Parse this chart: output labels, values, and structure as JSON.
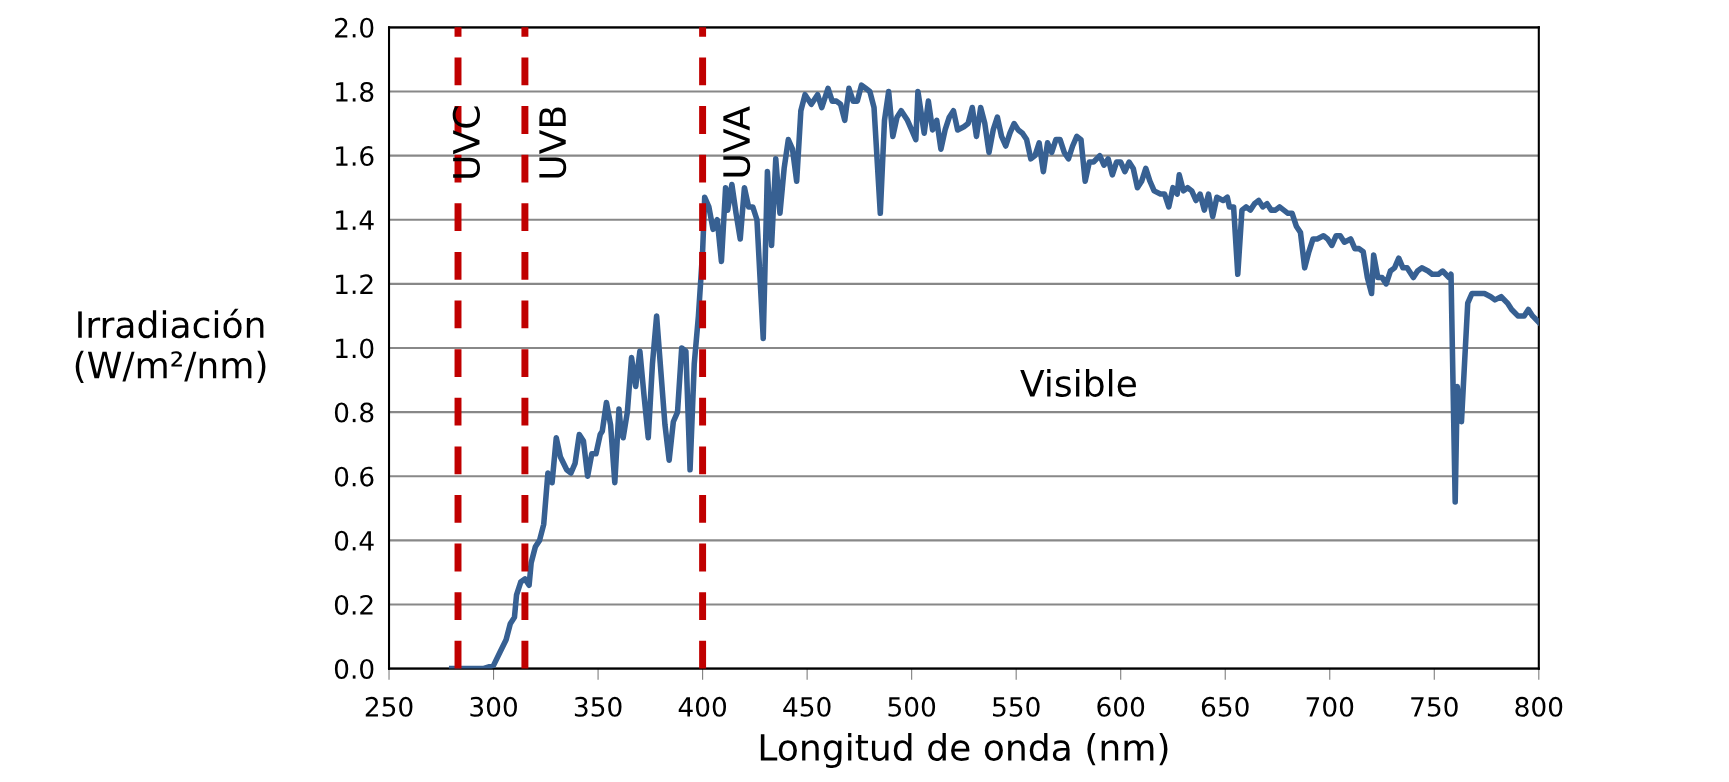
{
  "chart_data": {
    "type": "line",
    "xlabel": "Longitud de onda (nm)",
    "ylabel": "Irradiación\n(W/m²/nm)",
    "xlim": [
      250,
      800
    ],
    "xticks": [
      250,
      300,
      350,
      400,
      450,
      500,
      550,
      600,
      650,
      700,
      750,
      800
    ],
    "ylim": [
      0,
      2.0
    ],
    "yticks": [
      {
        "value": 0,
        "label": "0.0"
      },
      {
        "value": 0.2,
        "label": "0.2"
      },
      {
        "value": 0.4,
        "label": "0.4"
      },
      {
        "value": 0.6,
        "label": "0.6"
      },
      {
        "value": 0.8,
        "label": "0.8"
      },
      {
        "value": 1.0,
        "label": "1.0"
      },
      {
        "value": 1.2,
        "label": "1.2"
      },
      {
        "value": 1.4,
        "label": "1.4"
      },
      {
        "value": 1.6,
        "label": "1.6"
      },
      {
        "value": 1.8,
        "label": "1.8"
      },
      {
        "value": 2.0,
        "label": "2.0"
      }
    ],
    "grid": "y",
    "legend": false,
    "marker": "none",
    "line_style": "solid",
    "ref_lines": [
      {
        "axis": "x",
        "value": 283,
        "color": "#c00000",
        "line_style": "dashed"
      },
      {
        "axis": "x",
        "value": 315,
        "color": "#c00000",
        "line_style": "dashed"
      },
      {
        "axis": "x",
        "value": 400,
        "color": "#c00000",
        "line_style": "dashed"
      }
    ],
    "annotations": [
      "UVC",
      "UVB",
      "UVA",
      "Visible"
    ],
    "series": [
      {
        "color": "#376092",
        "x": [
          280,
          295,
          300,
          303,
          306,
          308,
          310,
          311,
          313,
          315,
          317,
          318,
          320,
          322,
          324,
          326,
          328,
          330,
          332,
          335,
          337,
          339,
          341,
          343,
          345,
          347,
          349,
          351,
          352,
          354,
          356,
          358,
          360,
          361,
          362,
          364,
          366,
          368,
          370,
          372,
          374,
          376,
          378,
          380,
          382,
          384,
          386,
          388,
          390,
          392,
          394,
          396,
          398,
          400,
          401,
          403,
          405,
          407,
          409,
          411,
          412,
          414,
          416,
          418,
          420,
          422,
          424,
          426,
          429,
          431,
          433,
          435,
          437,
          439,
          441,
          443,
          445,
          447,
          449,
          452,
          455,
          457,
          460,
          462,
          464,
          466,
          468,
          470,
          472,
          474,
          476,
          478,
          480,
          482,
          485,
          487,
          489,
          491,
          493,
          495,
          498,
          500,
          502,
          503,
          506,
          508,
          510,
          512,
          514,
          516,
          518,
          520,
          522,
          525,
          527,
          529,
          531,
          533,
          535,
          537,
          539,
          541,
          543,
          545,
          547,
          549,
          551,
          553,
          555,
          557,
          559,
          561,
          563,
          565,
          567,
          569,
          571,
          573,
          575,
          577,
          579,
          581,
          583,
          585,
          587,
          590,
          592,
          594,
          596,
          598,
          600,
          602,
          604,
          606,
          608,
          610,
          612,
          614,
          616,
          619,
          621,
          623,
          625,
          627,
          628,
          630,
          632,
          634,
          636,
          638,
          640,
          642,
          644,
          646,
          649,
          651,
          652,
          654,
          656,
          658,
          660,
          662,
          664,
          666,
          668,
          670,
          672,
          674,
          676,
          678,
          680,
          682,
          684,
          686,
          688,
          690,
          692,
          694,
          697,
          699,
          701,
          703,
          705,
          707,
          710,
          712,
          714,
          716,
          718,
          720,
          721,
          723,
          725,
          727,
          729,
          731,
          733,
          735,
          737,
          740,
          742,
          744,
          747,
          749,
          752,
          754,
          757,
          758,
          760,
          761,
          763,
          766,
          768,
          771,
          774,
          777,
          779,
          782,
          785,
          787,
          790,
          793,
          795,
          797,
          800
        ],
        "values": [
          0.0,
          0.0,
          0.01,
          0.05,
          0.09,
          0.14,
          0.16,
          0.23,
          0.27,
          0.28,
          0.26,
          0.33,
          0.38,
          0.4,
          0.45,
          0.61,
          0.58,
          0.72,
          0.66,
          0.62,
          0.61,
          0.64,
          0.73,
          0.71,
          0.6,
          0.67,
          0.67,
          0.73,
          0.74,
          0.83,
          0.76,
          0.58,
          0.81,
          0.74,
          0.72,
          0.8,
          0.97,
          0.88,
          0.99,
          0.85,
          0.72,
          0.95,
          1.1,
          0.93,
          0.76,
          0.65,
          0.77,
          0.8,
          1.0,
          0.99,
          0.62,
          0.95,
          1.1,
          1.3,
          1.47,
          1.44,
          1.37,
          1.4,
          1.27,
          1.5,
          1.43,
          1.51,
          1.42,
          1.34,
          1.5,
          1.44,
          1.44,
          1.4,
          1.03,
          1.55,
          1.32,
          1.59,
          1.42,
          1.56,
          1.65,
          1.62,
          1.52,
          1.74,
          1.79,
          1.76,
          1.79,
          1.75,
          1.81,
          1.77,
          1.77,
          1.76,
          1.71,
          1.81,
          1.77,
          1.77,
          1.82,
          1.81,
          1.8,
          1.75,
          1.42,
          1.71,
          1.8,
          1.66,
          1.72,
          1.74,
          1.71,
          1.68,
          1.65,
          1.8,
          1.67,
          1.77,
          1.68,
          1.71,
          1.62,
          1.68,
          1.72,
          1.74,
          1.68,
          1.69,
          1.7,
          1.75,
          1.66,
          1.75,
          1.7,
          1.61,
          1.68,
          1.72,
          1.66,
          1.63,
          1.67,
          1.7,
          1.68,
          1.67,
          1.65,
          1.59,
          1.6,
          1.64,
          1.55,
          1.64,
          1.61,
          1.65,
          1.65,
          1.61,
          1.59,
          1.63,
          1.66,
          1.65,
          1.52,
          1.58,
          1.58,
          1.6,
          1.57,
          1.59,
          1.54,
          1.58,
          1.58,
          1.55,
          1.58,
          1.56,
          1.5,
          1.52,
          1.56,
          1.52,
          1.49,
          1.48,
          1.48,
          1.44,
          1.5,
          1.48,
          1.54,
          1.49,
          1.5,
          1.49,
          1.46,
          1.48,
          1.43,
          1.48,
          1.41,
          1.47,
          1.46,
          1.47,
          1.44,
          1.44,
          1.23,
          1.43,
          1.44,
          1.43,
          1.45,
          1.46,
          1.44,
          1.45,
          1.43,
          1.43,
          1.44,
          1.43,
          1.42,
          1.42,
          1.38,
          1.36,
          1.25,
          1.3,
          1.34,
          1.34,
          1.35,
          1.34,
          1.32,
          1.35,
          1.35,
          1.33,
          1.34,
          1.31,
          1.31,
          1.3,
          1.22,
          1.17,
          1.29,
          1.22,
          1.22,
          1.2,
          1.24,
          1.25,
          1.28,
          1.25,
          1.25,
          1.22,
          1.24,
          1.25,
          1.24,
          1.23,
          1.23,
          1.24,
          1.22,
          1.23,
          0.52,
          0.88,
          0.77,
          1.14,
          1.17,
          1.17,
          1.17,
          1.16,
          1.15,
          1.16,
          1.14,
          1.12,
          1.1,
          1.1,
          1.12,
          1.1,
          1.08
        ]
      }
    ]
  }
}
